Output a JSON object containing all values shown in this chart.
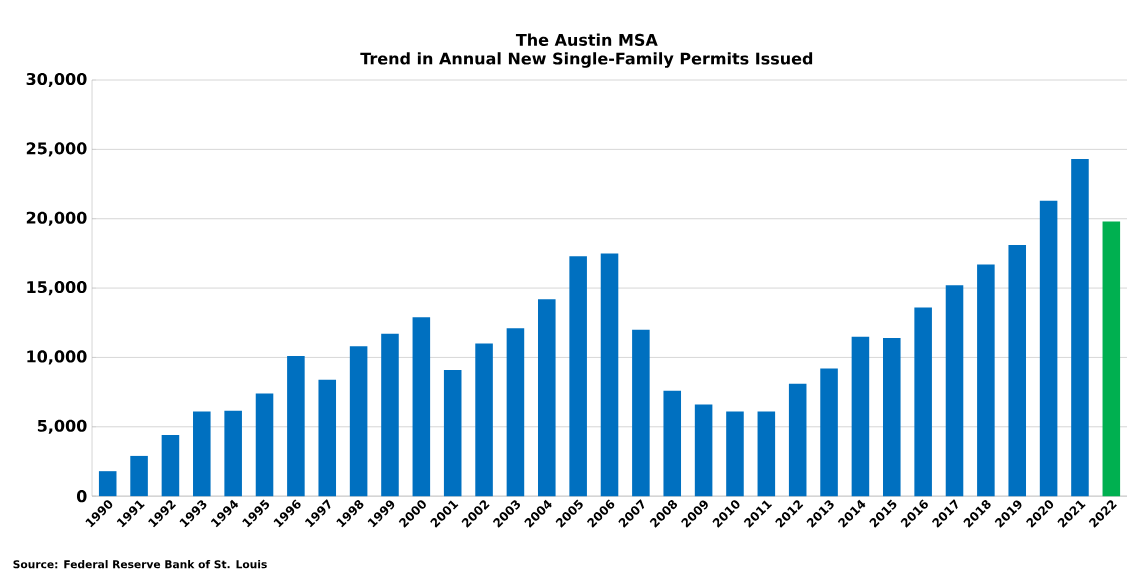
{
  "chart_data": {
    "type": "bar",
    "title": "The Austin MSA\nTrend in Annual New Single-Family Permits Issued",
    "categories": [
      "1990",
      "1991",
      "1992",
      "1993",
      "1994",
      "1995",
      "1996",
      "1997",
      "1998",
      "1999",
      "2000",
      "2001",
      "2002",
      "2003",
      "2004",
      "2005",
      "2006",
      "2007",
      "2008",
      "2009",
      "2010",
      "2011",
      "2012",
      "2013",
      "2014",
      "2015",
      "2016",
      "2017",
      "2018",
      "2019",
      "2020",
      "2021",
      "2022"
    ],
    "values": [
      1800,
      2900,
      4400,
      6100,
      6150,
      7400,
      10100,
      8400,
      10800,
      11700,
      12900,
      9100,
      11000,
      12100,
      14200,
      17300,
      17500,
      12000,
      7600,
      6600,
      6100,
      6100,
      8100,
      9200,
      11500,
      11400,
      13600,
      15200,
      16700,
      18100,
      21300,
      24300,
      19800
    ],
    "colors": [
      "#0070c0",
      "#0070c0",
      "#0070c0",
      "#0070c0",
      "#0070c0",
      "#0070c0",
      "#0070c0",
      "#0070c0",
      "#0070c0",
      "#0070c0",
      "#0070c0",
      "#0070c0",
      "#0070c0",
      "#0070c0",
      "#0070c0",
      "#0070c0",
      "#0070c0",
      "#0070c0",
      "#0070c0",
      "#0070c0",
      "#0070c0",
      "#0070c0",
      "#0070c0",
      "#0070c0",
      "#0070c0",
      "#0070c0",
      "#0070c0",
      "#0070c0",
      "#0070c0",
      "#0070c0",
      "#0070c0",
      "#0070c0",
      "#00b050"
    ],
    "ylim": [
      0,
      30000
    ],
    "yticks": [
      {
        "value": 0,
        "label": "0"
      },
      {
        "value": 5000,
        "label": "5,000"
      },
      {
        "value": 10000,
        "label": "10,000"
      },
      {
        "value": 15000,
        "label": "15,000"
      },
      {
        "value": 20000,
        "label": "20,000"
      },
      {
        "value": 25000,
        "label": "25,000"
      },
      {
        "value": 30000,
        "label": "30,000"
      }
    ],
    "grid": "y",
    "annotations": [
      "Source: Federal Reserve Bank of St. Louis"
    ]
  }
}
